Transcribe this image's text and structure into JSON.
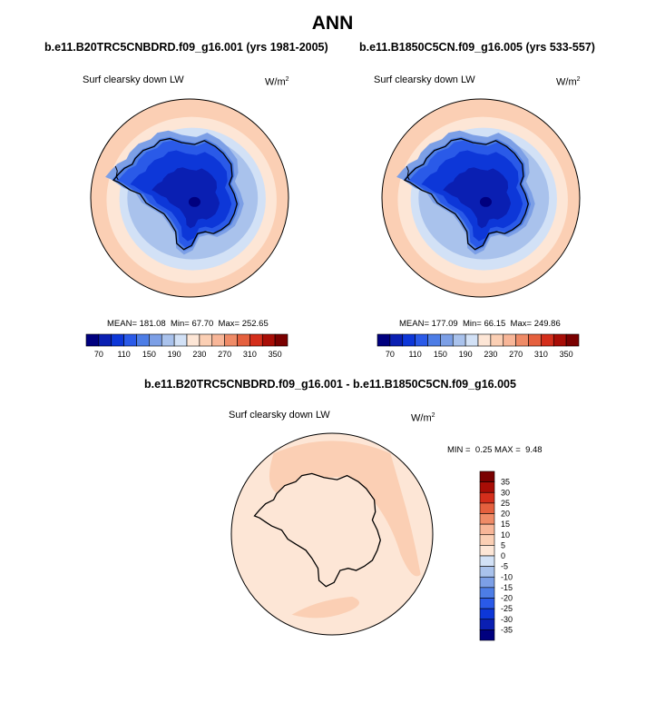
{
  "page": {
    "title": "ANN"
  },
  "colors": {
    "scale": [
      "#00007f",
      "#0a1fb2",
      "#0d37d8",
      "#2a5ae8",
      "#4d7de6",
      "#7c9fe6",
      "#a9c2ec",
      "#d2e1f6",
      "#fde6d6",
      "#fbcfb4",
      "#f8b698",
      "#ef8b67",
      "#e5603e",
      "#d42e1b",
      "#a80d06",
      "#7a0000"
    ],
    "diff_scale": [
      "#00007f",
      "#0a1fb2",
      "#0d37d8",
      "#2a5ae8",
      "#4d7de6",
      "#7c9fe6",
      "#a9c2ec",
      "#d2e1f6",
      "#fde6d6",
      "#fbcfb4",
      "#f8b698",
      "#ef8b67",
      "#e5603e",
      "#d42e1b",
      "#a80d06",
      "#7a0000"
    ],
    "land_outline": "#000000"
  },
  "chart_data": [
    {
      "type": "heatmap",
      "projection": "south-polar-stereographic",
      "case": "b.e11.B20TRC5CNBDRD.f09_g16.001 (yrs 1981-2005)",
      "variable": "Surf clearsky down LW",
      "units_base": "W/m",
      "units_exp": "2",
      "stats": {
        "mean_label": "MEAN=",
        "mean": "181.08",
        "min_label": "Min=",
        "min": "67.70",
        "max_label": "Max=",
        "max": "252.65"
      },
      "colorbar_ticks": [
        "70",
        "110",
        "150",
        "190",
        "230",
        "270",
        "310",
        "350"
      ],
      "contour_levels": [
        70,
        110,
        150,
        190,
        230,
        270,
        310,
        350
      ],
      "pattern": "values lowest (~70) over interior East Antarctica, increasing outward to ~230-250 over the Southern Ocean near 40S"
    },
    {
      "type": "heatmap",
      "projection": "south-polar-stereographic",
      "case": "b.e11.B1850C5CN.f09_g16.005 (yrs 533-557)",
      "variable": "Surf clearsky down LW",
      "units_base": "W/m",
      "units_exp": "2",
      "stats": {
        "mean_label": "MEAN=",
        "mean": "177.09",
        "min_label": "Min=",
        "min": "66.15",
        "max_label": "Max=",
        "max": "249.86"
      },
      "colorbar_ticks": [
        "70",
        "110",
        "150",
        "190",
        "230",
        "270",
        "310",
        "350"
      ],
      "contour_levels": [
        70,
        110,
        150,
        190,
        230,
        270,
        310,
        350
      ],
      "pattern": "values lowest (~66) over interior East Antarctica, increasing outward to ~230-250 over the Southern Ocean near 40S"
    },
    {
      "type": "heatmap",
      "projection": "south-polar-stereographic",
      "case": "b.e11.B20TRC5CNBDRD.f09_g16.001 - b.e11.B1850C5CN.f09_g16.005",
      "variable": "Surf clearsky down LW",
      "units_base": "W/m",
      "units_exp": "2",
      "stats": {
        "min_label": "MIN =",
        "min": "0.25",
        "max_label": "MAX =",
        "max": "9.48"
      },
      "colorbar_ticks": [
        "35",
        "30",
        "25",
        "20",
        "15",
        "10",
        "5",
        "0",
        "-5",
        "-10",
        "-15",
        "-20",
        "-25",
        "-30",
        "-35"
      ],
      "contour_levels": [
        -35,
        -30,
        -25,
        -20,
        -15,
        -10,
        -5,
        0,
        5,
        10,
        15,
        20,
        25,
        30,
        35
      ],
      "pattern": "difference mostly 0-5 everywhere; 5-10 bands over the Southern Ocean (Pacific/South America sector, Indian Ocean sector and south of Australia)"
    }
  ]
}
